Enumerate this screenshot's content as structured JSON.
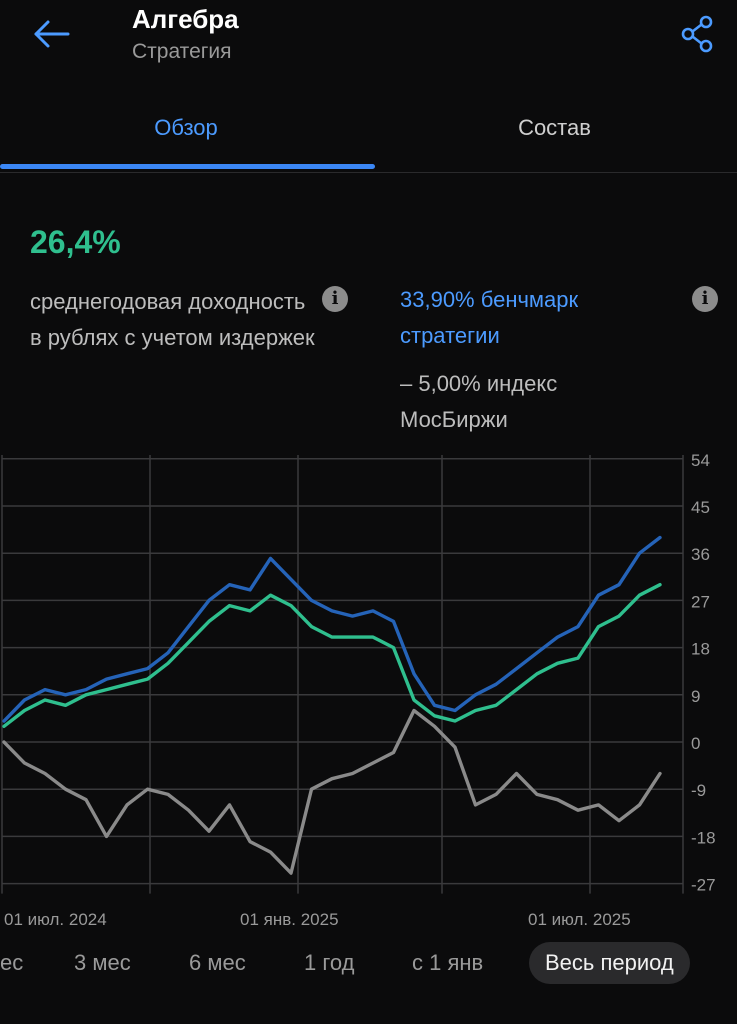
{
  "header": {
    "title": "Алгебра",
    "subtitle": "Стратегия"
  },
  "tabs": [
    {
      "label": "Обзор",
      "active": true
    },
    {
      "label": "Состав",
      "active": false
    }
  ],
  "summary": {
    "return_value": "26,4%",
    "return_label": "среднегодовая доходность в рублях с учетом издержек",
    "benchmark": "33,90% бенчмарк стратегии",
    "index": "– 5,00% индекс МосБиржи"
  },
  "colors": {
    "strategy": "#2fbf8e",
    "benchmark": "#2563b8",
    "index": "#8a8a8a",
    "accent": "#4c9bff"
  },
  "chart_data": {
    "type": "line",
    "y_ticks": [
      "54",
      "45",
      "36",
      "27",
      "18",
      "9",
      "0",
      "-9",
      "-18",
      "-27"
    ],
    "x_ticks": [
      "01 июл. 2024",
      "01 янв. 2025",
      "01 июл. 2025"
    ],
    "ylim": [
      -27,
      54
    ],
    "series": [
      {
        "key": "benchmark",
        "values": [
          4,
          8,
          10,
          9,
          10,
          12,
          13,
          14,
          17,
          22,
          27,
          30,
          29,
          35,
          31,
          27,
          25,
          24,
          25,
          23,
          13,
          7,
          6,
          9,
          11,
          14,
          17,
          20,
          22,
          28,
          30,
          36,
          39
        ]
      },
      {
        "key": "strategy",
        "values": [
          3,
          6,
          8,
          7,
          9,
          10,
          11,
          12,
          15,
          19,
          23,
          26,
          25,
          28,
          26,
          22,
          20,
          20,
          20,
          18,
          8,
          5,
          4,
          6,
          7,
          10,
          13,
          15,
          16,
          22,
          24,
          28,
          30
        ]
      },
      {
        "key": "index",
        "values": [
          0,
          -4,
          -6,
          -9,
          -11,
          -18,
          -12,
          -9,
          -10,
          -13,
          -17,
          -12,
          -19,
          -21,
          -25,
          -9,
          -7,
          -6,
          -4,
          -2,
          6,
          3,
          -1,
          -12,
          -10,
          -6,
          -10,
          -11,
          -13,
          -12,
          -15,
          -12,
          -6
        ]
      }
    ]
  },
  "periods": [
    {
      "label": "ес",
      "selected": false
    },
    {
      "label": "3 мес",
      "selected": false
    },
    {
      "label": "6 мес",
      "selected": false
    },
    {
      "label": "1 год",
      "selected": false
    },
    {
      "label": "с 1 янв",
      "selected": false
    },
    {
      "label": "Весь период",
      "selected": true
    }
  ]
}
